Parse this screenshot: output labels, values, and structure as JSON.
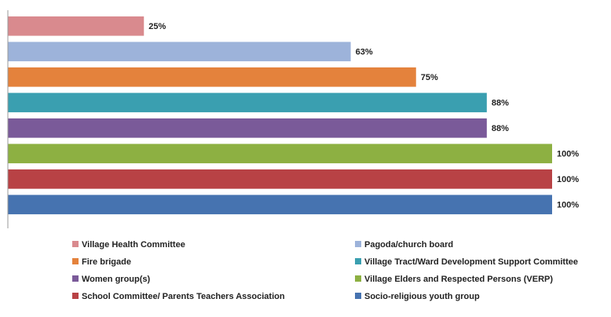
{
  "chart_data": {
    "type": "bar",
    "orientation": "horizontal",
    "categories": [
      "Village Health Committee",
      "Pagoda/church board",
      "Fire brigade",
      "Village Tract/Ward Development Support Committee",
      "Women group(s)",
      "Village Elders and Respected Persons (VERP)",
      "School Committee/ Parents Teachers Association",
      "Socio-religious youth group"
    ],
    "values": [
      25,
      63,
      75,
      88,
      88,
      100,
      100,
      100
    ],
    "value_labels": [
      "25%",
      "63%",
      "75%",
      "88%",
      "88%",
      "100%",
      "100%",
      "100%"
    ],
    "colors": [
      "#d98a8e",
      "#9db3da",
      "#e4823c",
      "#3a9fb0",
      "#7a5a99",
      "#8db042",
      "#b84245",
      "#4673b0"
    ],
    "xlim": [
      0,
      100
    ],
    "legend": "bottom"
  }
}
